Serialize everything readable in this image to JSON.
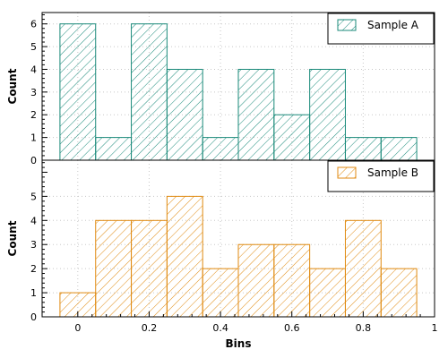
{
  "chart_data": [
    {
      "type": "bar",
      "histogram": true,
      "bin_edges": [
        -0.05,
        0.05,
        0.15,
        0.25,
        0.35,
        0.45,
        0.55,
        0.65,
        0.75,
        0.85,
        0.95
      ],
      "values": [
        6,
        1,
        6,
        4,
        1,
        4,
        2,
        4,
        1,
        1
      ],
      "series_name": "Sample A",
      "color": "#1a8a7a",
      "hatch": "diagonal",
      "ylabel": "Count",
      "ylim": [
        0,
        6.5
      ],
      "yticks": [
        0,
        1,
        2,
        3,
        4,
        5,
        6
      ],
      "xlim": [
        -0.1,
        1.0
      ],
      "grid": true,
      "legend_position": "top-right"
    },
    {
      "type": "bar",
      "histogram": true,
      "bin_edges": [
        -0.05,
        0.05,
        0.15,
        0.25,
        0.35,
        0.45,
        0.55,
        0.65,
        0.75,
        0.85,
        0.95
      ],
      "values": [
        1,
        4,
        4,
        5,
        2,
        3,
        3,
        2,
        4,
        2
      ],
      "series_name": "Sample B",
      "color": "#e08a10",
      "hatch": "diagonal",
      "xlabel": "Bins",
      "ylabel": "Count",
      "ylim": [
        0,
        6.5
      ],
      "yticks": [
        0,
        1,
        2,
        3,
        4,
        5
      ],
      "xlim": [
        -0.1,
        1.0
      ],
      "xticks": [
        0,
        0.2,
        0.4,
        0.6,
        0.8,
        1
      ],
      "xtick_labels": [
        "0",
        "0.2",
        "0.4",
        "0.6",
        "0.8",
        "1"
      ],
      "grid": true,
      "legend_position": "top-right"
    }
  ]
}
